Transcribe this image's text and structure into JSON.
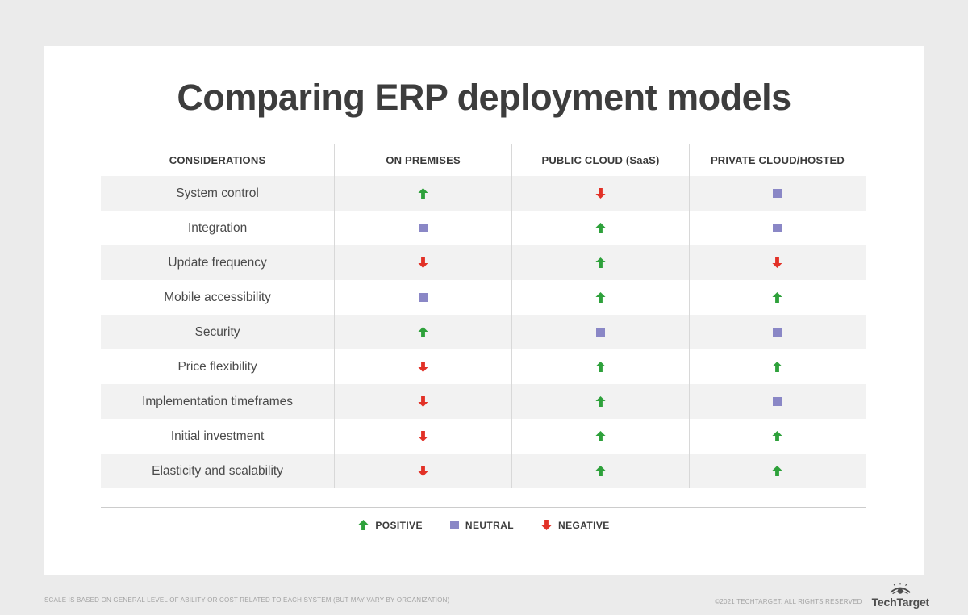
{
  "chart_data": {
    "type": "table",
    "title": "Comparing ERP deployment models",
    "columns": [
      "CONSIDERATIONS",
      "ON PREMISES",
      "PUBLIC CLOUD (SaaS)",
      "PRIVATE CLOUD/HOSTED"
    ],
    "rows": [
      {
        "label": "System control",
        "values": [
          "positive",
          "negative",
          "neutral"
        ]
      },
      {
        "label": "Integration",
        "values": [
          "neutral",
          "positive",
          "neutral"
        ]
      },
      {
        "label": "Update frequency",
        "values": [
          "negative",
          "positive",
          "negative"
        ]
      },
      {
        "label": "Mobile accessibility",
        "values": [
          "neutral",
          "positive",
          "positive"
        ]
      },
      {
        "label": "Security",
        "values": [
          "positive",
          "neutral",
          "neutral"
        ]
      },
      {
        "label": "Price flexibility",
        "values": [
          "negative",
          "positive",
          "positive"
        ]
      },
      {
        "label": "Implementation timeframes",
        "values": [
          "negative",
          "positive",
          "neutral"
        ]
      },
      {
        "label": "Initial investment",
        "values": [
          "negative",
          "positive",
          "positive"
        ]
      },
      {
        "label": "Elasticity and scalability",
        "values": [
          "negative",
          "positive",
          "positive"
        ]
      }
    ],
    "legend": [
      {
        "type": "positive",
        "label": "POSITIVE"
      },
      {
        "type": "neutral",
        "label": "NEUTRAL"
      },
      {
        "type": "negative",
        "label": "NEGATIVE"
      }
    ]
  },
  "colors": {
    "positive": "#2ea13b",
    "neutral": "#8a87c6",
    "negative": "#e23127"
  },
  "footer": {
    "disclaimer": "SCALE IS BASED ON GENERAL LEVEL OF ABILITY OR COST RELATED TO EACH SYSTEM (BUT MAY VARY BY ORGANIZATION)",
    "copyright": "©2021 TECHTARGET. ALL RIGHTS RESERVED",
    "brand": "TechTarget"
  }
}
